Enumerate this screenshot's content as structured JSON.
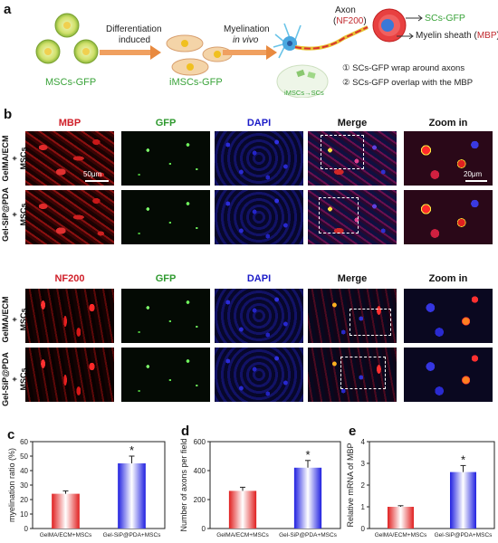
{
  "panel_a": {
    "label": "a",
    "msc_label": "MSCs-GFP",
    "arrow1_label_line1": "Differentiation",
    "arrow1_label_line2": "induced",
    "imsc_label": "iMSCs-GFP",
    "arrow2_label_line1": "Myelination",
    "arrow2_label_line2": "in vivo",
    "axon_word": "Axon",
    "axon_marker": "NF200",
    "scs_gfp": "SCs-GFP",
    "myelin_word": "Myelin sheath (",
    "myelin_marker": "MBP",
    "myelin_close": ")",
    "inset_label": "iMSCs→SCs",
    "note1": "① SCs-GFP wrap around axons",
    "note2": "② SCs-GFP overlap with the MBP"
  },
  "panel_b": {
    "label": "b",
    "top_columns": [
      "MBP",
      "GFP",
      "DAPI",
      "Merge",
      "Zoom in"
    ],
    "bottom_columns": [
      "NF200",
      "GFP",
      "DAPI",
      "Merge",
      "Zoom in"
    ],
    "column_colors": [
      "#d0202a",
      "#2f9a2f",
      "#1c1cc8",
      "#111111",
      "#111111"
    ],
    "row_labels": [
      "GelMA/ECM\n+\nMSCs",
      "Gel-SiP@PDA\n+\nMSCs",
      "GelMA/ECM\n+\nMSCs",
      "Gel-SiP@PDA\n+\nMSCs"
    ],
    "scale_low": "50μm",
    "scale_high": "20μm"
  },
  "chart_data": [
    {
      "panel": "c",
      "type": "bar",
      "ylabel": "myelination ratio (%)",
      "categories": [
        "GelMA/ECM+MSCs",
        "Gel-SiP@PDA+MSCs"
      ],
      "values": [
        24,
        45
      ],
      "errors": [
        2,
        5
      ],
      "ylim": [
        0,
        60
      ],
      "yticks": [
        "0",
        "10",
        "20",
        "30",
        "40",
        "50",
        "60"
      ],
      "significance": [
        "",
        "*"
      ],
      "colors": [
        "#e02020",
        "#2020e0"
      ]
    },
    {
      "panel": "d",
      "type": "bar",
      "ylabel": "Number of axons per field",
      "categories": [
        "GelMA/ECM+MSCs",
        "Gel-SiP@PDA+MSCs"
      ],
      "values": [
        260,
        420
      ],
      "errors": [
        25,
        50
      ],
      "ylim": [
        0,
        600
      ],
      "yticks": [
        "0",
        "200",
        "400",
        "600"
      ],
      "significance": [
        "",
        "*"
      ],
      "colors": [
        "#e02020",
        "#2020e0"
      ]
    },
    {
      "panel": "e",
      "type": "bar",
      "ylabel": "Relative mRNA of MBP",
      "categories": [
        "GelMA/ECM+MSCs",
        "Gel-SiP@PDA+MSCs"
      ],
      "values": [
        1.0,
        2.6
      ],
      "errors": [
        0.05,
        0.3
      ],
      "ylim": [
        0,
        4
      ],
      "yticks": [
        "0",
        "1",
        "2",
        "3",
        "4"
      ],
      "significance": [
        "",
        "*"
      ],
      "colors": [
        "#e02020",
        "#2020e0"
      ]
    }
  ]
}
